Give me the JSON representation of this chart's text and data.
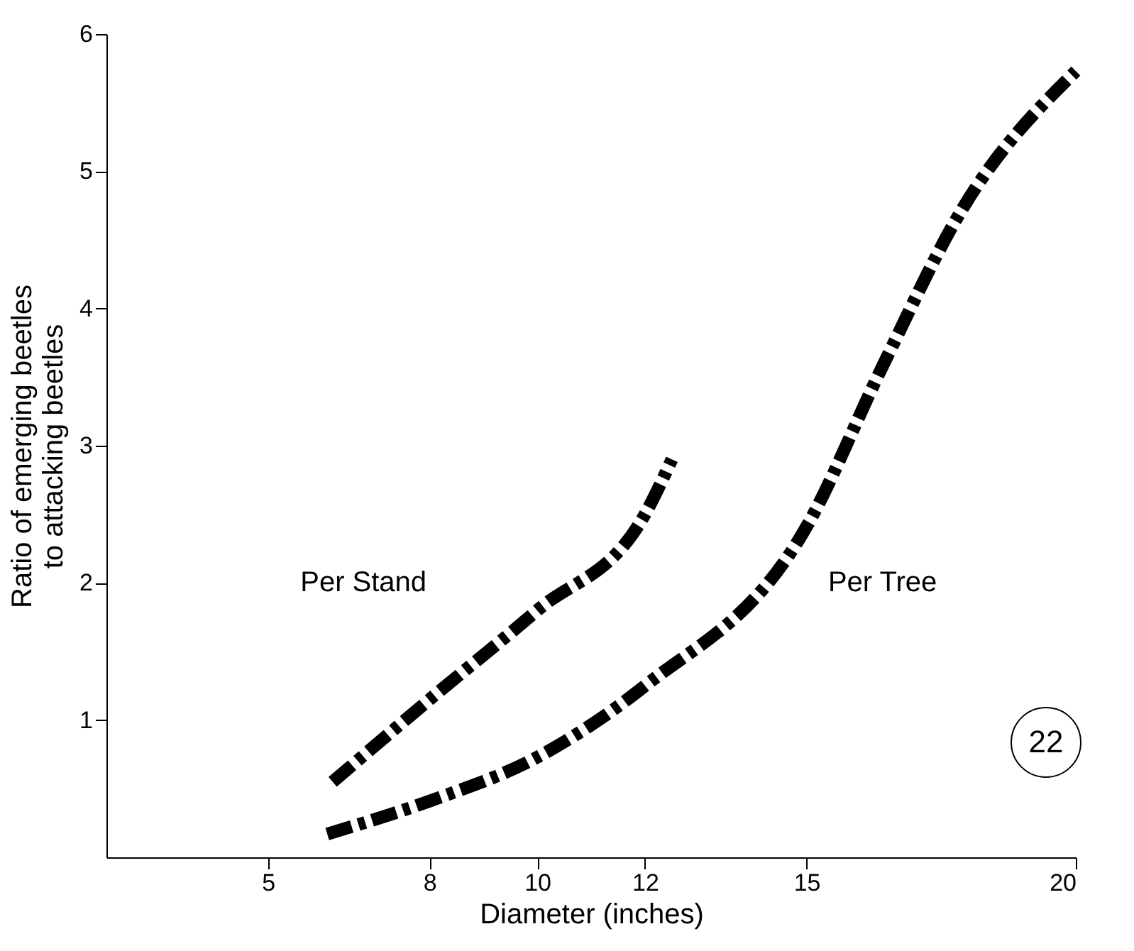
{
  "chart_data": {
    "type": "line",
    "xlabel": "Diameter (inches)",
    "ylabel": "Ratio of emerging beetles to attacking beetles",
    "xlim": [
      2,
      20
    ],
    "xticks": [
      5,
      8,
      10,
      12,
      15,
      20
    ],
    "ylim": [
      0,
      6
    ],
    "yticks": [
      1,
      2,
      3,
      4,
      5,
      6
    ],
    "grid": false,
    "marker": "none",
    "line_style": "dashed",
    "annotations": [
      "22"
    ],
    "series": [
      {
        "name": "Per Stand",
        "color": "#000000",
        "x": [
          6.2,
          8,
          10,
          12,
          12.5
        ],
        "values": [
          0.55,
          1.15,
          1.8,
          2.5,
          2.9
        ]
      },
      {
        "name": "Per Tree",
        "color": "#000000",
        "x": [
          6.1,
          8,
          10,
          12,
          15,
          16.4,
          17.9,
          20
        ],
        "values": [
          0.17,
          0.41,
          0.73,
          1.25,
          2.41,
          3.57,
          4.73,
          5.73
        ]
      }
    ]
  }
}
